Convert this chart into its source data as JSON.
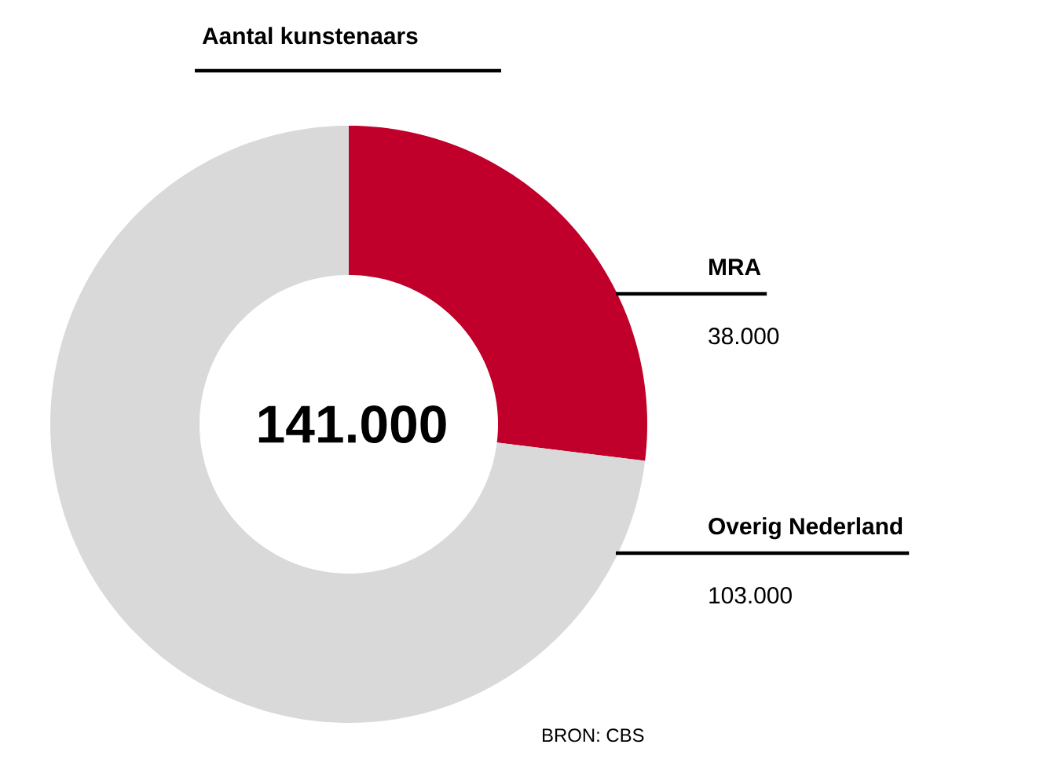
{
  "chart_data": {
    "type": "donut",
    "title": "Aantal kunstenaars",
    "categories": [
      "MRA",
      "Overig Nederland"
    ],
    "values": [
      38000,
      103000
    ],
    "colors": [
      "#c0002a",
      "#d9d9d9"
    ],
    "value_labels": [
      "38.000",
      "103.000"
    ],
    "annotations": [
      "141.000",
      "BRON: CBS"
    ]
  }
}
